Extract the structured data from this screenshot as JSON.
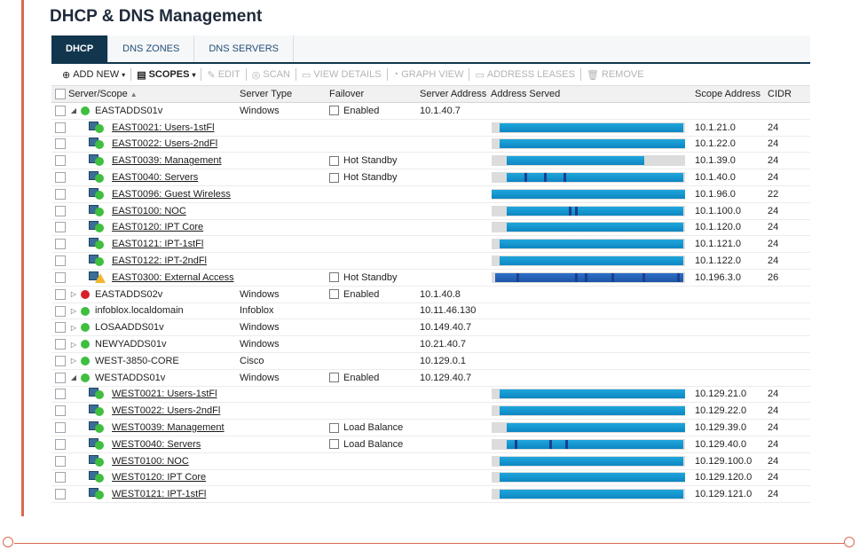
{
  "page_title": "DHCP & DNS Management",
  "tabs": [
    {
      "label": "DHCP",
      "active": true
    },
    {
      "label": "DNS ZONES",
      "active": false
    },
    {
      "label": "DNS SERVERS",
      "active": false
    }
  ],
  "toolbar": {
    "add_new": "ADD NEW",
    "scopes": "SCOPES",
    "edit": "EDIT",
    "scan": "SCAN",
    "view_details": "VIEW DETAILS",
    "graph_view": "GRAPH VIEW",
    "address_leases": "ADDRESS LEASES",
    "remove": "REMOVE"
  },
  "columns": {
    "server_scope": "Server/Scope",
    "server_type": "Server Type",
    "failover": "Failover",
    "server_address": "Server Address",
    "address_served": "Address Served",
    "scope_address": "Scope Address",
    "cidr": "CIDR"
  },
  "colors": {
    "accent": "#d9694f",
    "tab_active": "#12364d",
    "bar_fill": "#1fa6dc",
    "status_up": "#3fbe3f",
    "status_down": "#d8202a",
    "warning": "#f1b82d"
  },
  "rows": [
    {
      "kind": "server",
      "expanded": true,
      "status": "up",
      "name": "EASTADDS01v",
      "type": "Windows",
      "failover": "Enabled",
      "address": "10.1.40.7"
    },
    {
      "kind": "scope",
      "name": "EAST0021: Users-1stFl",
      "served": {
        "start": 0.04,
        "end": 0.99,
        "marks": []
      },
      "scope_address": "10.1.21.0",
      "cidr": "24"
    },
    {
      "kind": "scope",
      "name": "EAST0022: Users-2ndFl",
      "served": {
        "start": 0.04,
        "end": 1.0,
        "marks": []
      },
      "scope_address": "10.1.22.0",
      "cidr": "24"
    },
    {
      "kind": "scope",
      "name": "EAST0039: Management",
      "failover": "Hot Standby",
      "served": {
        "start": 0.08,
        "end": 0.79,
        "marks": []
      },
      "scope_address": "10.1.39.0",
      "cidr": "24"
    },
    {
      "kind": "scope",
      "name": "EAST0040: Servers",
      "failover": "Hot Standby",
      "served": {
        "start": 0.08,
        "end": 0.99,
        "marks": [
          0.17,
          0.27,
          0.37
        ]
      },
      "scope_address": "10.1.40.0",
      "cidr": "24"
    },
    {
      "kind": "scope",
      "name": "EAST0096: Guest Wireless",
      "served": {
        "start": 0.0,
        "end": 1.0,
        "marks": []
      },
      "scope_address": "10.1.96.0",
      "cidr": "22"
    },
    {
      "kind": "scope",
      "name": "EAST0100: NOC",
      "served": {
        "start": 0.08,
        "end": 0.99,
        "marks": [
          0.4,
          0.43
        ]
      },
      "scope_address": "10.1.100.0",
      "cidr": "24"
    },
    {
      "kind": "scope",
      "name": "EAST0120: IPT Core",
      "served": {
        "start": 0.08,
        "end": 0.99,
        "marks": []
      },
      "scope_address": "10.1.120.0",
      "cidr": "24"
    },
    {
      "kind": "scope",
      "name": "EAST0121: IPT-1stFl",
      "served": {
        "start": 0.04,
        "end": 0.99,
        "marks": []
      },
      "scope_address": "10.1.121.0",
      "cidr": "24"
    },
    {
      "kind": "scope",
      "name": "EAST0122: IPT-2ndFl",
      "served": {
        "start": 0.04,
        "end": 0.99,
        "marks": []
      },
      "scope_address": "10.1.122.0",
      "cidr": "24"
    },
    {
      "kind": "scope",
      "warning": true,
      "ext": true,
      "name": "EAST0300: External Access",
      "failover": "Hot Standby",
      "served": {
        "start": 0.02,
        "end": 0.99,
        "marks": [
          0.13,
          0.43,
          0.48,
          0.62,
          0.78,
          0.96
        ]
      },
      "scope_address": "10.196.3.0",
      "cidr": "26"
    },
    {
      "kind": "server",
      "expanded": false,
      "status": "down",
      "name": "EASTADDS02v",
      "type": "Windows",
      "failover": "Enabled",
      "address": "10.1.40.8"
    },
    {
      "kind": "server",
      "expanded": false,
      "status": "up",
      "name": "infoblox.localdomain",
      "type": "Infoblox",
      "address": "10.11.46.130"
    },
    {
      "kind": "server",
      "expanded": false,
      "status": "up",
      "name": "LOSAADDS01v",
      "type": "Windows",
      "address": "10.149.40.7"
    },
    {
      "kind": "server",
      "expanded": false,
      "status": "up",
      "name": "NEWYADDS01v",
      "type": "Windows",
      "address": "10.21.40.7"
    },
    {
      "kind": "server",
      "expanded": false,
      "status": "up",
      "name": "WEST-3850-CORE",
      "type": "Cisco",
      "address": "10.129.0.1"
    },
    {
      "kind": "server",
      "expanded": true,
      "status": "up",
      "name": "WESTADDS01v",
      "type": "Windows",
      "failover": "Enabled",
      "address": "10.129.40.7"
    },
    {
      "kind": "scope",
      "name": "WEST0021: Users-1stFl",
      "served": {
        "start": 0.04,
        "end": 1.0,
        "marks": []
      },
      "scope_address": "10.129.21.0",
      "cidr": "24"
    },
    {
      "kind": "scope",
      "name": "WEST0022: Users-2ndFl",
      "served": {
        "start": 0.04,
        "end": 1.0,
        "marks": []
      },
      "scope_address": "10.129.22.0",
      "cidr": "24"
    },
    {
      "kind": "scope",
      "name": "WEST0039: Management",
      "failover": "Load Balance",
      "served": {
        "start": 0.08,
        "end": 1.0,
        "marks": []
      },
      "scope_address": "10.129.39.0",
      "cidr": "24"
    },
    {
      "kind": "scope",
      "name": "WEST0040: Servers",
      "failover": "Load Balance",
      "served": {
        "start": 0.08,
        "end": 0.99,
        "marks": [
          0.12,
          0.3,
          0.38
        ]
      },
      "scope_address": "10.129.40.0",
      "cidr": "24"
    },
    {
      "kind": "scope",
      "name": "WEST0100: NOC",
      "served": {
        "start": 0.04,
        "end": 0.99,
        "marks": []
      },
      "scope_address": "10.129.100.0",
      "cidr": "24"
    },
    {
      "kind": "scope",
      "name": "WEST0120: IPT Core",
      "served": {
        "start": 0.04,
        "end": 1.0,
        "marks": []
      },
      "scope_address": "10.129.120.0",
      "cidr": "24"
    },
    {
      "kind": "scope",
      "name": "WEST0121: IPT-1stFl",
      "served": {
        "start": 0.04,
        "end": 0.99,
        "marks": []
      },
      "scope_address": "10.129.121.0",
      "cidr": "24"
    }
  ]
}
